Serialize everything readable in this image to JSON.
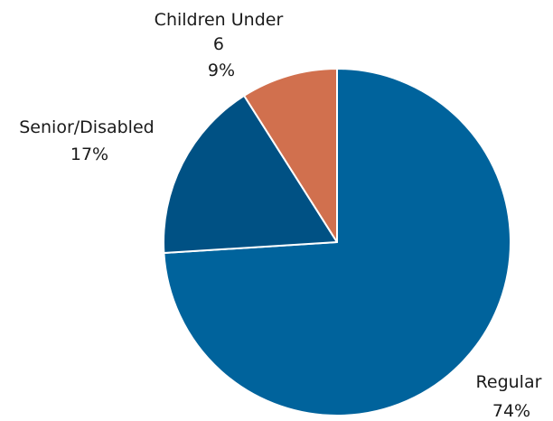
{
  "chart_data": {
    "type": "pie",
    "title": "",
    "start_angle_deg": 0,
    "direction": "clockwise",
    "slices": [
      {
        "label": "Regular",
        "value": 74,
        "value_label": "74%",
        "color": "#00639c"
      },
      {
        "label": "Senior/Disabled",
        "value": 17,
        "value_label": "17%",
        "color": "#005184"
      },
      {
        "label": "Children Under 6",
        "label_lines": [
          "Children Under",
          "6"
        ],
        "value": 9,
        "value_label": "9%",
        "color": "#d1704e"
      }
    ],
    "legend": "none",
    "data_labels": "outside"
  }
}
